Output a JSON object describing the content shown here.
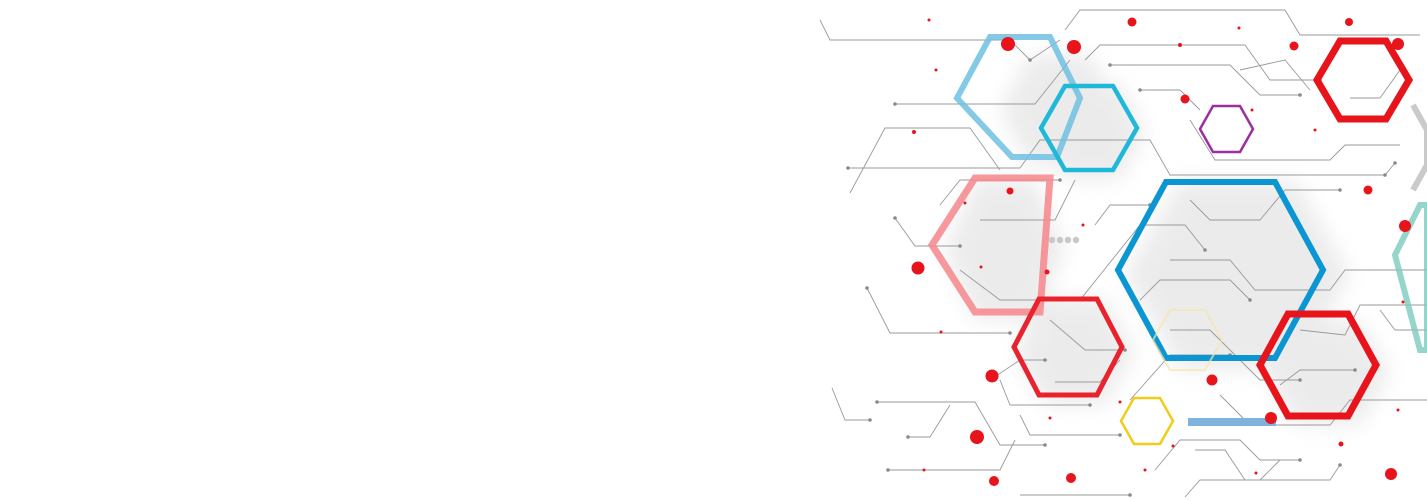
{
  "banner": {
    "background_color": "#ffffff",
    "artwork": "hexagon-circuit-pattern",
    "palette": {
      "red": "#e8141c",
      "light_red": "#f4868b",
      "blue": "#0a96d2",
      "cyan": "#1fb8d8",
      "light_blue": "#6fbfe0",
      "purple": "#9b2fa0",
      "yellow": "#f2cc1a",
      "teal": "#7ccbbd",
      "gray_line": "#9a9a9a",
      "shadow_gray": "#d8d8d8"
    }
  }
}
